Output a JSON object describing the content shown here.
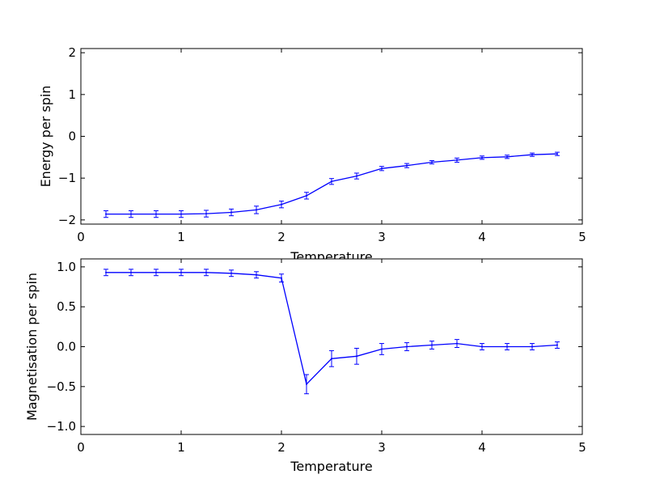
{
  "chart_data": [
    {
      "type": "line",
      "xlabel": "Temperature",
      "ylabel": "Energy per spin",
      "xlim": [
        0,
        5
      ],
      "ylim": [
        -2.1,
        2.1
      ],
      "xticks": [
        0,
        1,
        2,
        3,
        4,
        5
      ],
      "xtick_labels": [
        "0",
        "1",
        "2",
        "3",
        "4",
        "5"
      ],
      "yticks": [
        -2,
        -1,
        0,
        1,
        2
      ],
      "ytick_labels": [
        "−2",
        "−1",
        "0",
        "1",
        "2"
      ],
      "grid": false,
      "error_bars": true,
      "color": "#0000ff",
      "x": [
        0.25,
        0.5,
        0.75,
        1.0,
        1.25,
        1.5,
        1.75,
        2.0,
        2.25,
        2.5,
        2.75,
        3.0,
        3.25,
        3.5,
        3.75,
        4.0,
        4.25,
        4.5,
        4.75
      ],
      "y": [
        -1.86,
        -1.86,
        -1.86,
        -1.86,
        -1.85,
        -1.82,
        -1.76,
        -1.63,
        -1.42,
        -1.08,
        -0.95,
        -0.77,
        -0.7,
        -0.62,
        -0.57,
        -0.51,
        -0.49,
        -0.44,
        -0.42
      ],
      "yerr": [
        0.08,
        0.08,
        0.08,
        0.08,
        0.08,
        0.08,
        0.09,
        0.08,
        0.08,
        0.07,
        0.07,
        0.05,
        0.05,
        0.04,
        0.05,
        0.04,
        0.04,
        0.04,
        0.04
      ]
    },
    {
      "type": "line",
      "xlabel": "Temperature",
      "ylabel": "Magnetisation per spin",
      "xlim": [
        0,
        5
      ],
      "ylim": [
        -1.1,
        1.1
      ],
      "xticks": [
        0,
        1,
        2,
        3,
        4,
        5
      ],
      "xtick_labels": [
        "0",
        "1",
        "2",
        "3",
        "4",
        "5"
      ],
      "yticks": [
        -1.0,
        -0.5,
        0.0,
        0.5,
        1.0
      ],
      "ytick_labels": [
        "−1.0",
        "−0.5",
        "0.0",
        "0.5",
        "1.0"
      ],
      "grid": false,
      "error_bars": true,
      "color": "#0000ff",
      "x": [
        0.25,
        0.5,
        0.75,
        1.0,
        1.25,
        1.5,
        1.75,
        2.0,
        2.25,
        2.5,
        2.75,
        3.0,
        3.25,
        3.5,
        3.75,
        4.0,
        4.25,
        4.5,
        4.75
      ],
      "y": [
        0.93,
        0.93,
        0.93,
        0.93,
        0.93,
        0.92,
        0.9,
        0.86,
        -0.47,
        -0.15,
        -0.12,
        -0.03,
        0.0,
        0.02,
        0.04,
        0.0,
        0.0,
        0.0,
        0.02
      ],
      "yerr": [
        0.04,
        0.04,
        0.04,
        0.04,
        0.04,
        0.04,
        0.04,
        0.05,
        0.12,
        0.1,
        0.1,
        0.07,
        0.05,
        0.05,
        0.05,
        0.04,
        0.04,
        0.04,
        0.04
      ]
    }
  ]
}
